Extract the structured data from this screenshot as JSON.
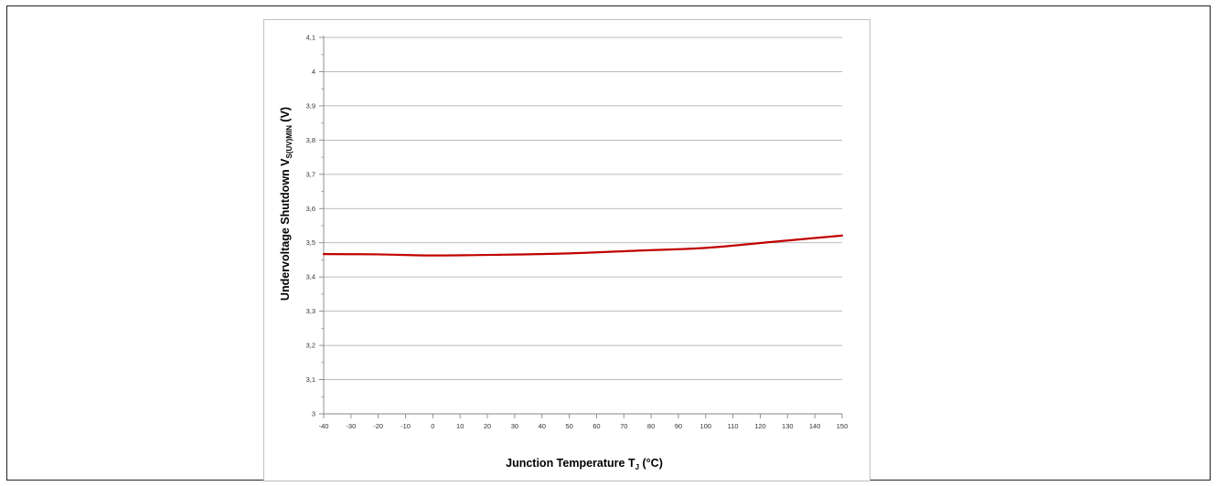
{
  "chart_data": {
    "type": "line",
    "xlabel_main": "Junction Temperature T",
    "xlabel_sub": "J",
    "xlabel_tail": " (°C)",
    "ylabel_main": "Undervoltage Shutdown  V",
    "ylabel_sub": "S(UV)MIN",
    "ylabel_tail": " (V)",
    "xlim": [
      -40,
      150
    ],
    "ylim": [
      3,
      4.1
    ],
    "x_ticks": [
      -40,
      -30,
      -20,
      -10,
      0,
      10,
      20,
      30,
      40,
      50,
      60,
      70,
      80,
      90,
      100,
      110,
      120,
      130,
      140,
      150
    ],
    "y_ticks": [
      3,
      3.1,
      3.2,
      3.3,
      3.4,
      3.5,
      3.6,
      3.7,
      3.8,
      3.9,
      4,
      4.1
    ],
    "y_tick_labels": [
      "3",
      "3,1",
      "3,2",
      "3,3",
      "3,4",
      "3,5",
      "3,6",
      "3,7",
      "3,8",
      "3,9",
      "4",
      "4,1"
    ],
    "grid": "horizontal",
    "legend": "none",
    "series": [
      {
        "color": "#c00000",
        "x": [
          -40,
          -20,
          0,
          25,
          50,
          75,
          100,
          125,
          150
        ],
        "y": [
          3.467,
          3.466,
          3.463,
          3.465,
          3.469,
          3.477,
          3.485,
          3.503,
          3.521
        ]
      }
    ]
  }
}
